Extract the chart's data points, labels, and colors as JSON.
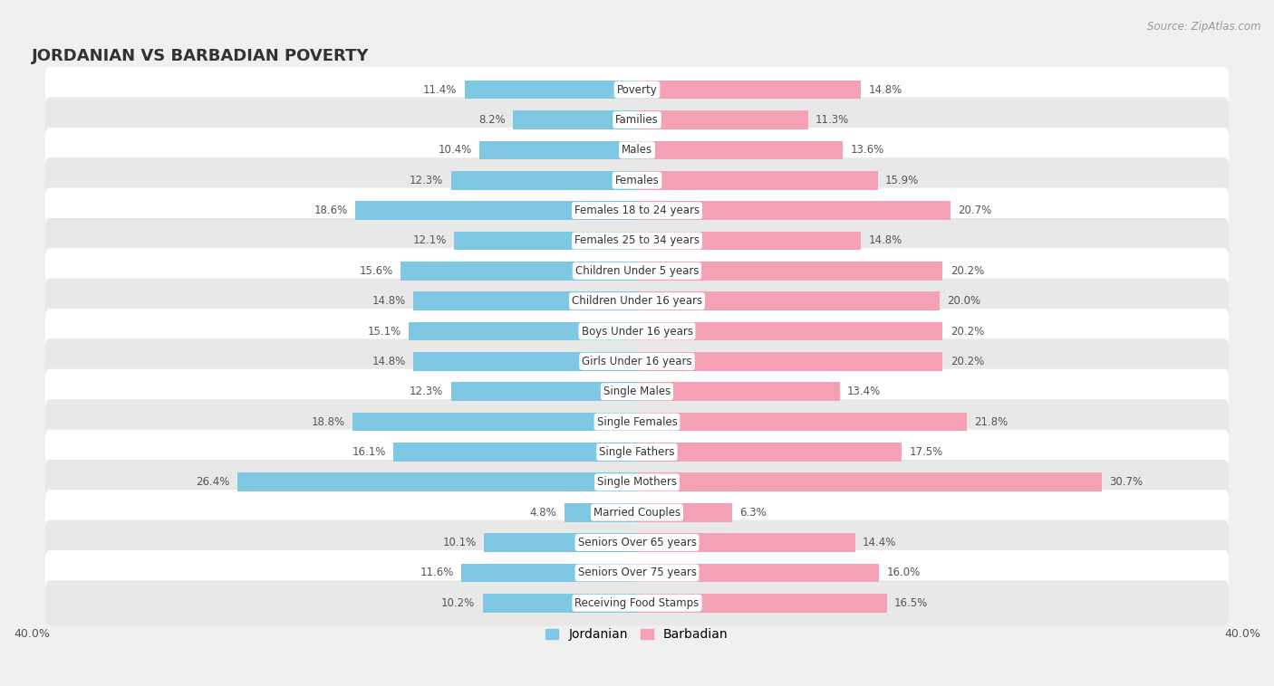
{
  "title": "JORDANIAN VS BARBADIAN POVERTY",
  "source": "Source: ZipAtlas.com",
  "categories": [
    "Poverty",
    "Families",
    "Males",
    "Females",
    "Females 18 to 24 years",
    "Females 25 to 34 years",
    "Children Under 5 years",
    "Children Under 16 years",
    "Boys Under 16 years",
    "Girls Under 16 years",
    "Single Males",
    "Single Females",
    "Single Fathers",
    "Single Mothers",
    "Married Couples",
    "Seniors Over 65 years",
    "Seniors Over 75 years",
    "Receiving Food Stamps"
  ],
  "jordanian": [
    11.4,
    8.2,
    10.4,
    12.3,
    18.6,
    12.1,
    15.6,
    14.8,
    15.1,
    14.8,
    12.3,
    18.8,
    16.1,
    26.4,
    4.8,
    10.1,
    11.6,
    10.2
  ],
  "barbadian": [
    14.8,
    11.3,
    13.6,
    15.9,
    20.7,
    14.8,
    20.2,
    20.0,
    20.2,
    20.2,
    13.4,
    21.8,
    17.5,
    30.7,
    6.3,
    14.4,
    16.0,
    16.5
  ],
  "jordanian_color": "#7ec8e3",
  "barbadian_color": "#f4a0b5",
  "background_color": "#f0f0f0",
  "row_bg_white": "#ffffff",
  "row_bg_gray": "#e8e8e8",
  "xlim": 40.0,
  "bar_height": 0.62,
  "title_fontsize": 13,
  "label_fontsize": 8.5,
  "tick_fontsize": 9,
  "legend_fontsize": 10,
  "source_fontsize": 8.5
}
